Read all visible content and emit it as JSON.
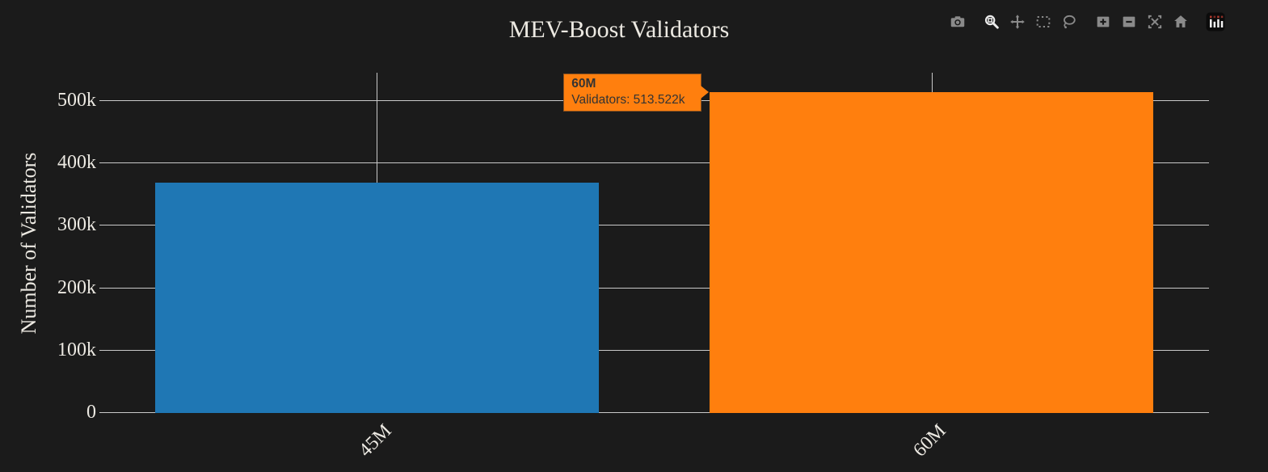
{
  "title": "MEV-Boost Validators",
  "colors": {
    "background": "#1b1b1b",
    "grid": "#c9c9c9",
    "text": "#ece9e2",
    "bar_blue": "#1f77b4",
    "bar_orange": "#ff7f0e",
    "tooltip_bg": "#ff7f0e",
    "tooltip_text": "#333333",
    "modebar_icon": "#8a8a8a",
    "modebar_icon_active": "#ededed"
  },
  "chart_data": {
    "type": "bar",
    "title": "MEV-Boost Validators",
    "xlabel": "",
    "ylabel": "Number of Validators",
    "categories": [
      "45M",
      "60M"
    ],
    "values": [
      368000,
      513522
    ],
    "bar_colors": [
      "#1f77b4",
      "#ff7f0e"
    ],
    "yticks": [
      "0",
      "100k",
      "200k",
      "300k",
      "400k",
      "500k"
    ],
    "ytick_values": [
      0,
      100000,
      200000,
      300000,
      400000,
      500000
    ],
    "ylim": [
      0,
      544000
    ],
    "grid": true,
    "legend": false
  },
  "tooltip": {
    "title": "60M",
    "label": "Validators: 513.522k"
  },
  "modebar": {
    "active_tool": "zoom",
    "icons": [
      "camera-icon",
      "zoom-icon",
      "pan-icon",
      "box-select-icon",
      "lasso-select-icon",
      "zoom-in-icon",
      "zoom-out-icon",
      "autoscale-icon",
      "home-icon",
      "plotly-logo"
    ]
  }
}
